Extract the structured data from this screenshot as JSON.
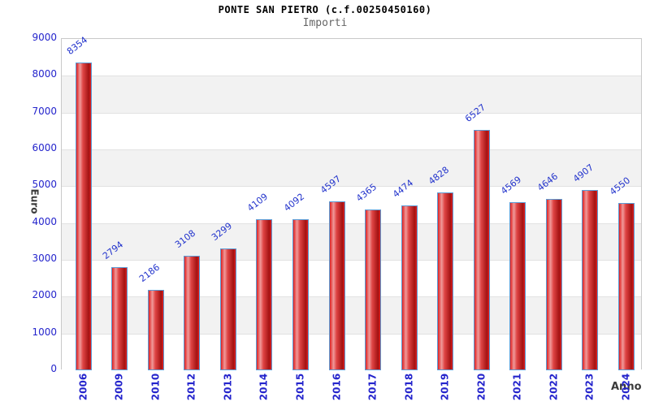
{
  "chart_data": {
    "type": "bar",
    "title": "PONTE SAN PIETRO (c.f.00250450160)",
    "subtitle": "Importi",
    "xlabel": "Anno",
    "ylabel": "Euro",
    "categories": [
      "2006",
      "2009",
      "2010",
      "2012",
      "2013",
      "2014",
      "2015",
      "2016",
      "2017",
      "2018",
      "2019",
      "2020",
      "2021",
      "2022",
      "2023",
      "2024"
    ],
    "values": [
      8354,
      2794,
      2186,
      3108,
      3299,
      4109,
      4092,
      4597,
      4365,
      4474,
      4828,
      6527,
      4569,
      4646,
      4907,
      4550
    ],
    "ylim": [
      0,
      9000
    ],
    "ytick_step": 1000,
    "grid": "horizontal gridlines with alternating gray/white bands",
    "legend_position": "none"
  },
  "colors": {
    "bar_fill": "#e02020",
    "bar_highlight": "#ef9a9a",
    "bar_mid": "#e04545",
    "bar_shadow": "#a31212",
    "bar_border": "#5b9bd5",
    "tick_label": "#2424cc",
    "value_label": "#2233cc",
    "axis_title": "#3a3a3a",
    "band_gray": "#f2f2f2",
    "gridline": "#e2e2e2",
    "plot_border": "#c9c9c9",
    "title_color": "#000000",
    "subtitle_color": "#666666"
  }
}
